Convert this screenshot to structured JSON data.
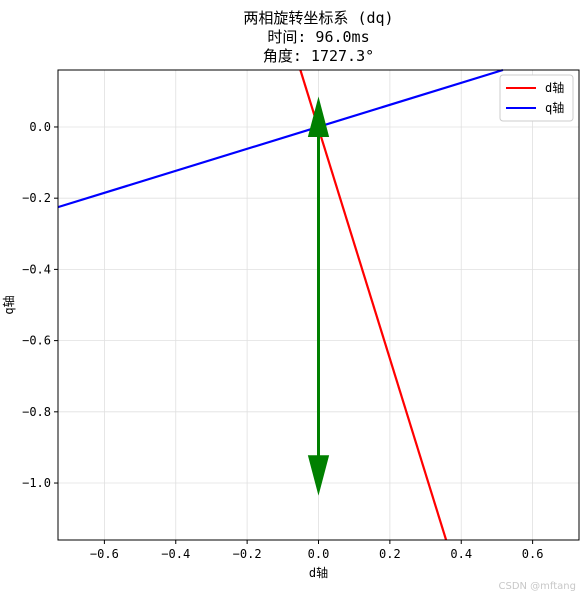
{
  "chart_data": {
    "type": "line",
    "title_lines": [
      "两相旋转坐标系 (dq)",
      "时间: 96.0ms",
      "角度: 1727.3°"
    ],
    "xlabel": "d轴",
    "ylabel": "q轴",
    "xlim": [
      -0.73,
      0.73
    ],
    "ylim": [
      -1.16,
      0.16
    ],
    "xticks": [
      -0.6,
      -0.4,
      -0.2,
      0.0,
      0.2,
      0.4,
      0.6
    ],
    "xtick_labels": [
      "−0.6",
      "−0.4",
      "−0.2",
      "0.0",
      "0.2",
      "0.4",
      "0.6"
    ],
    "yticks": [
      0.0,
      -0.2,
      -0.4,
      -0.6,
      -0.8,
      -1.0
    ],
    "ytick_labels": [
      "0.0",
      "−0.2",
      "−0.4",
      "−0.6",
      "−0.8",
      "−1.0"
    ],
    "grid": true,
    "legend_position": "top-right",
    "series": [
      {
        "name": "d轴",
        "color": "#ff0000",
        "x": [
          -0.0508,
          0.3576
        ],
        "y": [
          0.16,
          -1.16
        ]
      },
      {
        "name": "q轴",
        "color": "#0000ff",
        "x": [
          -0.73,
          0.5168
        ],
        "y": [
          -0.2251,
          0.16
        ]
      }
    ],
    "vectors": [
      {
        "color": "#008000",
        "x0": 0.0,
        "y0": 0.0,
        "x1": 0.0,
        "y1": 0.08
      },
      {
        "color": "#008000",
        "x0": 0.0,
        "y0": 0.0,
        "x1": 0.0,
        "y1": -1.03
      }
    ]
  },
  "watermark": "CSDN @mftang"
}
